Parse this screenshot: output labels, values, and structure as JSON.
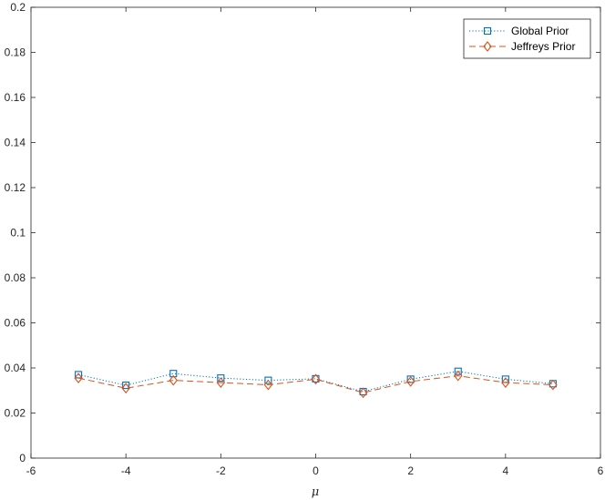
{
  "chart_data": {
    "type": "line",
    "xlabel": "μ",
    "ylabel": "",
    "title": "",
    "xlim": [
      -6,
      6
    ],
    "ylim": [
      0,
      0.2
    ],
    "xticks": [
      "-6",
      "-4",
      "-2",
      "0",
      "2",
      "4",
      "6"
    ],
    "yticks": [
      "0",
      "0.02",
      "0.04",
      "0.06",
      "0.08",
      "0.1",
      "0.12",
      "0.14",
      "0.16",
      "0.18",
      "0.2"
    ],
    "grid": false,
    "legend_position": "top-right",
    "x": [
      -5,
      -4,
      -3,
      -2,
      -1,
      0,
      1,
      2,
      3,
      4,
      5
    ],
    "series": [
      {
        "name": "Global Prior",
        "color": "#0072BD",
        "line_style": "dotted",
        "marker": "square",
        "values": [
          0.037,
          0.0323,
          0.0375,
          0.0355,
          0.0345,
          0.0352,
          0.0295,
          0.035,
          0.0385,
          0.035,
          0.033
        ]
      },
      {
        "name": "Jeffreys Prior",
        "color": "#D95319",
        "line_style": "dashed",
        "marker": "diamond",
        "values": [
          0.0355,
          0.031,
          0.0345,
          0.0335,
          0.0325,
          0.035,
          0.029,
          0.034,
          0.0365,
          0.0335,
          0.0325
        ]
      }
    ]
  }
}
